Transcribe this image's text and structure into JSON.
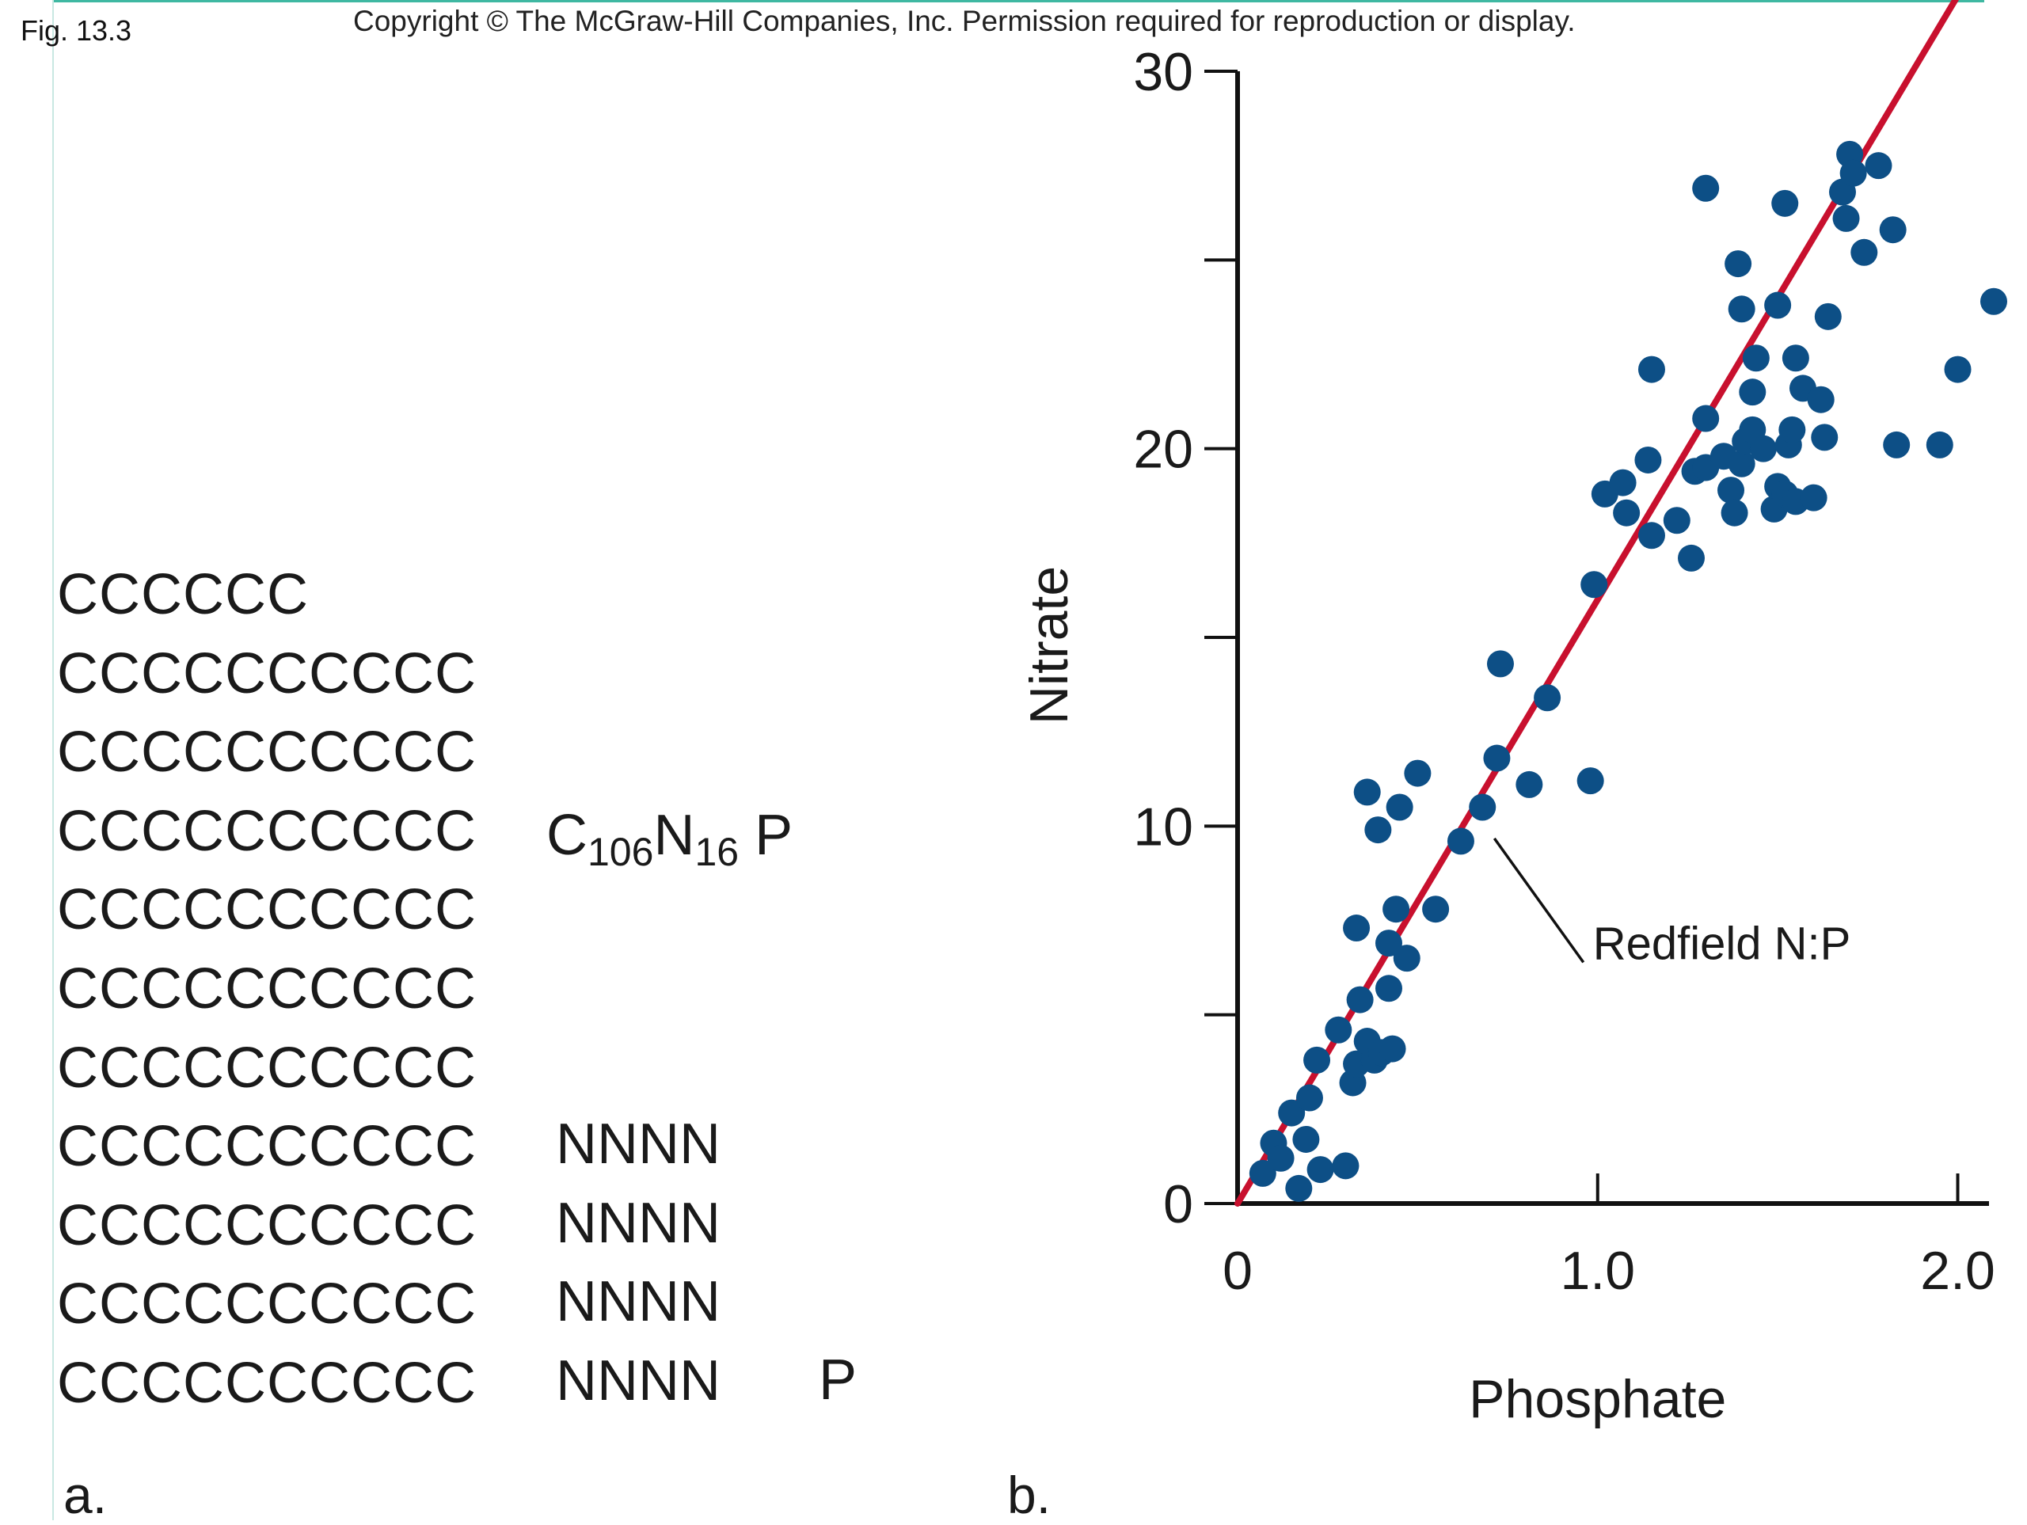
{
  "figure": {
    "label": "Fig. 13.3",
    "copyright": "Copyright © The McGraw-Hill Companies, Inc. Permission required for reproduction or display."
  },
  "panel_a": {
    "label": "a.",
    "carbon_rows": [
      "CCCCCC",
      "CCCCCCCCCC",
      "CCCCCCCCCC",
      "CCCCCCCCCC",
      "CCCCCCCCCC",
      "CCCCCCCCCC",
      "CCCCCCCCCC",
      "CCCCCCCCCC",
      "CCCCCCCCCC",
      "CCCCCCCCCC",
      "CCCCCCCCCC"
    ],
    "formula": {
      "c": "C",
      "c_sub": "106",
      "n": "N",
      "n_sub": "16",
      "p": " P"
    },
    "nitrogen_rows": [
      "NNNN",
      "NNNN",
      "NNNN",
      "NNNN"
    ],
    "phosphorus": "P"
  },
  "chart_data": {
    "type": "scatter",
    "panel_label": "b.",
    "title": "",
    "xlabel": "Phosphate",
    "ylabel": "Nitrate",
    "xlim": [
      0,
      2.1
    ],
    "ylim": [
      0,
      30
    ],
    "x_ticks": [
      {
        "value": 0,
        "label": "0"
      },
      {
        "value": 1.0,
        "label": "1.0"
      },
      {
        "value": 2.0,
        "label": "2.0"
      }
    ],
    "y_ticks": [
      {
        "value": 0,
        "label": "0"
      },
      {
        "value": 5,
        "label": ""
      },
      {
        "value": 10,
        "label": "10"
      },
      {
        "value": 15,
        "label": ""
      },
      {
        "value": 20,
        "label": "20"
      },
      {
        "value": 25,
        "label": ""
      },
      {
        "value": 30,
        "label": "30"
      }
    ],
    "grid": false,
    "point_color": "#0d4f86",
    "line_color": "#c8102e",
    "reference_line": {
      "label": "Redfield N:P",
      "slope": 16,
      "intercept": 0,
      "x_range": [
        0,
        2.05
      ]
    },
    "annotation": {
      "text": "Redfield N:P",
      "point": [
        0.7,
        9.8
      ],
      "text_at": [
        1.0,
        6.6
      ]
    },
    "points": [
      [
        0.07,
        0.8
      ],
      [
        0.1,
        1.6
      ],
      [
        0.12,
        1.2
      ],
      [
        0.15,
        2.4
      ],
      [
        0.17,
        0.4
      ],
      [
        0.19,
        1.7
      ],
      [
        0.2,
        2.8
      ],
      [
        0.22,
        3.8
      ],
      [
        0.23,
        0.9
      ],
      [
        0.3,
        1.0
      ],
      [
        0.28,
        4.6
      ],
      [
        0.32,
        3.2
      ],
      [
        0.33,
        3.7
      ],
      [
        0.34,
        5.4
      ],
      [
        0.36,
        4.3
      ],
      [
        0.38,
        3.8
      ],
      [
        0.4,
        4.0
      ],
      [
        0.43,
        4.1
      ],
      [
        0.42,
        5.7
      ],
      [
        0.47,
        6.5
      ],
      [
        0.33,
        7.3
      ],
      [
        0.42,
        6.9
      ],
      [
        0.44,
        7.8
      ],
      [
        0.55,
        7.8
      ],
      [
        0.36,
        10.9
      ],
      [
        0.39,
        9.9
      ],
      [
        0.45,
        10.5
      ],
      [
        0.5,
        11.4
      ],
      [
        0.62,
        9.6
      ],
      [
        0.68,
        10.5
      ],
      [
        0.72,
        11.8
      ],
      [
        0.81,
        11.1
      ],
      [
        0.73,
        14.3
      ],
      [
        0.86,
        13.4
      ],
      [
        0.98,
        11.2
      ],
      [
        0.99,
        16.4
      ],
      [
        1.02,
        18.8
      ],
      [
        1.07,
        19.1
      ],
      [
        1.08,
        18.3
      ],
      [
        1.14,
        19.7
      ],
      [
        1.15,
        17.7
      ],
      [
        1.22,
        18.1
      ],
      [
        1.26,
        17.1
      ],
      [
        1.27,
        19.4
      ],
      [
        1.3,
        19.5
      ],
      [
        1.3,
        20.8
      ],
      [
        1.35,
        19.8
      ],
      [
        1.37,
        18.9
      ],
      [
        1.38,
        18.3
      ],
      [
        1.4,
        19.6
      ],
      [
        1.41,
        20.2
      ],
      [
        1.43,
        20.5
      ],
      [
        1.43,
        21.5
      ],
      [
        1.44,
        22.4
      ],
      [
        1.46,
        20.0
      ],
      [
        1.49,
        18.4
      ],
      [
        1.5,
        19.0
      ],
      [
        1.52,
        18.8
      ],
      [
        1.53,
        20.1
      ],
      [
        1.54,
        20.5
      ],
      [
        1.55,
        18.6
      ],
      [
        1.55,
        22.4
      ],
      [
        1.57,
        21.6
      ],
      [
        1.6,
        18.7
      ],
      [
        1.62,
        21.3
      ],
      [
        1.63,
        20.3
      ],
      [
        1.64,
        23.5
      ],
      [
        1.15,
        22.1
      ],
      [
        1.3,
        26.9
      ],
      [
        1.39,
        24.9
      ],
      [
        1.4,
        23.7
      ],
      [
        1.5,
        23.8
      ],
      [
        1.52,
        26.5
      ],
      [
        1.68,
        26.8
      ],
      [
        1.69,
        26.1
      ],
      [
        1.7,
        27.8
      ],
      [
        1.71,
        27.3
      ],
      [
        1.74,
        25.2
      ],
      [
        1.78,
        27.5
      ],
      [
        1.82,
        25.8
      ],
      [
        1.83,
        20.1
      ],
      [
        1.95,
        20.1
      ],
      [
        2.0,
        22.1
      ],
      [
        2.1,
        23.9
      ]
    ]
  }
}
